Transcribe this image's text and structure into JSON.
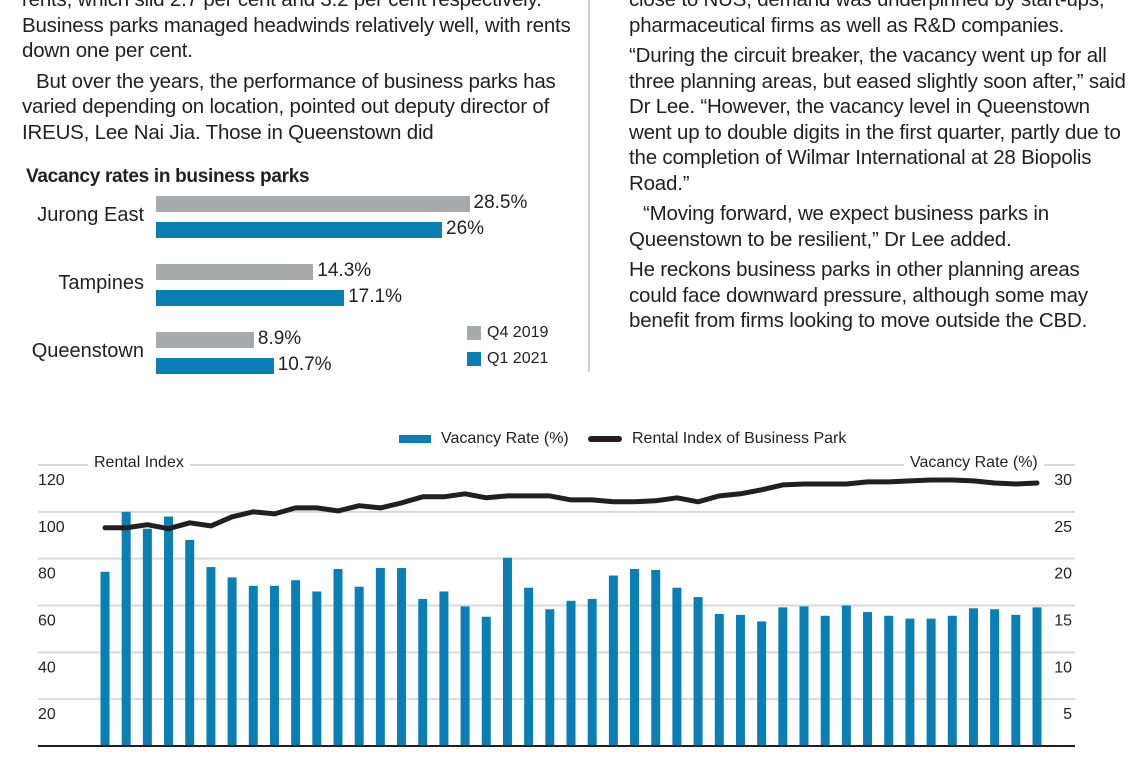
{
  "article": {
    "left_column": [
      {
        "text": "rents, which slid 2.7 per cent and 3.2 per cent respectively. Business parks managed headwinds relatively well, with rents down one per cent.",
        "indent": false
      },
      {
        "text": "But over the years, the performance of business parks has varied depending on location, pointed out deputy director of IREUS, Lee Nai Jia. Those in Queenstown did",
        "indent": true
      }
    ],
    "right_column": [
      {
        "text": "close to NUS, demand was underpinned by start-ups, pharmaceutical firms as well as R&D companies.",
        "indent": false
      },
      {
        "text": "“During the circuit breaker, the vacancy went up for all three planning areas, but eased slightly soon after,” said Dr Lee. “However, the vacancy level in Queenstown went up to double digits in the first quarter, partly due to the completion of Wilmar International at 28 Biopolis Road.”",
        "indent": false
      },
      {
        "text": "“Moving forward, we expect business parks in Queenstown to be resilient,” Dr Lee added.",
        "indent": true
      },
      {
        "text": "He reckons business parks in other planning areas could face downward pressure, although some may benefit from firms looking to move outside the CBD.",
        "indent": false
      }
    ]
  },
  "colors": {
    "blue": "#0a7fb5",
    "gray": "#a7a9ac",
    "line": "#231f20",
    "grid": "#d9d9d9"
  },
  "chart_data": [
    {
      "type": "bar",
      "orientation": "horizontal",
      "title": "Vacancy rates in business parks",
      "categories": [
        "Jurong East",
        "Tampines",
        "Queenstown"
      ],
      "series": [
        {
          "name": "Q4 2019",
          "color": "#a7a9ac",
          "values": [
            28.5,
            14.3,
            8.9
          ],
          "labels": [
            "28.5%",
            "14.3%",
            "8.9%"
          ]
        },
        {
          "name": "Q1 2021",
          "color": "#0a7fb5",
          "values": [
            26,
            17.1,
            10.7
          ],
          "labels": [
            "26%",
            "17.1%",
            "10.7%"
          ]
        }
      ],
      "legend": "bottom-right",
      "xlabel": "",
      "ylabel": ""
    },
    {
      "type": "bar+line",
      "title": "",
      "legend": "top-center",
      "legend_entries": [
        "Vacancy Rate (%)",
        "Rental Index of Business Park"
      ],
      "left_axis": {
        "title": "Rental Index",
        "ticks": [
          "120",
          "100",
          "80",
          "60",
          "40",
          "20"
        ],
        "range": [
          0,
          120
        ]
      },
      "right_axis": {
        "title": "Vacancy Rate (%)",
        "ticks": [
          "30",
          "25",
          "20",
          "15",
          "10",
          "5"
        ],
        "range": [
          0,
          30
        ]
      },
      "grid": true,
      "series": [
        {
          "name": "Vacancy Rate (%)",
          "type": "bar",
          "axis": "right",
          "color": "#0a7fb5",
          "values": [
            18.6,
            25.0,
            23.2,
            24.5,
            22.0,
            19.1,
            18.0,
            17.1,
            17.1,
            17.7,
            16.5,
            18.9,
            17.0,
            19.0,
            19.0,
            15.7,
            16.5,
            14.9,
            13.8,
            20.1,
            16.9,
            14.6,
            15.5,
            15.7,
            18.2,
            18.9,
            18.8,
            16.9,
            15.9,
            14.1,
            14.0,
            13.3,
            14.8,
            14.9,
            13.9,
            15.0,
            14.3,
            13.9,
            13.6,
            13.6,
            13.9,
            14.7,
            14.6,
            14.0,
            14.8
          ]
        },
        {
          "name": "Rental Index of Business Park",
          "type": "line",
          "axis": "left",
          "color": "#231f20",
          "values": [
            93.2,
            93.2,
            94.5,
            92.8,
            95.3,
            94.0,
            97.9,
            100.0,
            99.1,
            101.7,
            101.7,
            100.4,
            102.6,
            101.7,
            103.8,
            106.4,
            106.4,
            107.7,
            106.0,
            106.8,
            106.8,
            106.8,
            105.1,
            105.1,
            104.3,
            104.3,
            104.7,
            106.0,
            104.3,
            106.8,
            107.7,
            109.4,
            111.5,
            111.9,
            111.9,
            111.9,
            112.8,
            112.8,
            113.2,
            113.6,
            113.6,
            113.2,
            112.3,
            111.9,
            112.3
          ]
        }
      ]
    }
  ]
}
